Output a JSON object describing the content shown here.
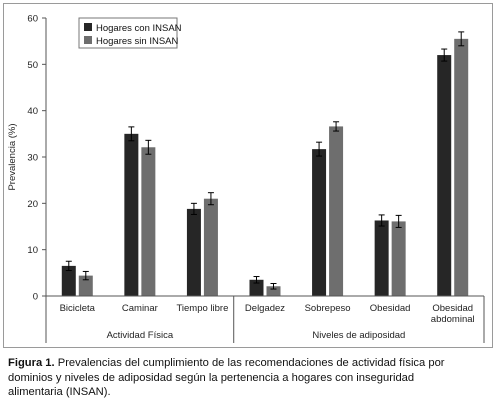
{
  "chart_data": {
    "type": "bar",
    "ylabel": "Prevalencia (%)",
    "ylim": [
      0,
      60
    ],
    "yticks": [
      "0",
      "10",
      "20",
      "30",
      "40",
      "50",
      "60"
    ],
    "categories": [
      "Bicicleta",
      "Caminar",
      "Tiempo libre",
      "Delgadez",
      "Sobrepeso",
      "Obesidad",
      "Obesidad abdominal"
    ],
    "category_lines": [
      [
        "Bicicleta"
      ],
      [
        "Caminar"
      ],
      [
        "Tiempo libre"
      ],
      [
        "Delgadez"
      ],
      [
        "Sobrepeso"
      ],
      [
        "Obesidad"
      ],
      [
        "Obesidad",
        "abdominal"
      ]
    ],
    "groups": [
      {
        "label": "Actividad Física",
        "count": 3
      },
      {
        "label": "Niveles de adiposidad",
        "count": 4
      }
    ],
    "series": [
      {
        "name": "Hogares con INSAN",
        "color": "#262626",
        "values": [
          6.5,
          35.0,
          18.8,
          3.5,
          31.7,
          16.3,
          52.0
        ],
        "errors": [
          1.0,
          1.5,
          1.2,
          0.7,
          1.5,
          1.2,
          1.3
        ]
      },
      {
        "name": "Hogares sin INSAN",
        "color": "#6e6e6e",
        "values": [
          4.4,
          32.1,
          21.0,
          2.1,
          36.6,
          16.1,
          55.5
        ],
        "errors": [
          0.9,
          1.5,
          1.3,
          0.6,
          1.0,
          1.3,
          1.5
        ]
      }
    ],
    "legend_position": "top-left",
    "grid": false
  },
  "caption": {
    "label": "Figura 1.",
    "lines": [
      " Prevalencias del cumplimiento de las recomendaciones de actividad física por",
      "dominios y niveles de adiposidad según la pertenencia a hogares con inseguridad",
      "alimentaria (INSAN)."
    ]
  }
}
